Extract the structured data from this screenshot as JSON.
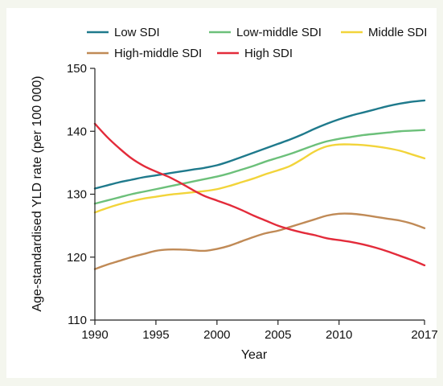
{
  "chart_data": {
    "type": "line",
    "xlabel": "Year",
    "ylabel": "Age-standardised YLD rate (per 100 000)",
    "xlim": [
      1990,
      2017
    ],
    "ylim": [
      110,
      150
    ],
    "xticks": [
      1990,
      1995,
      2000,
      2005,
      2010,
      2017
    ],
    "yticks": [
      110,
      120,
      130,
      140,
      150
    ],
    "grid": false,
    "legend": "top",
    "x": [
      1990,
      1991,
      1992,
      1993,
      1994,
      1995,
      1996,
      1997,
      1998,
      1999,
      2000,
      2001,
      2002,
      2003,
      2004,
      2005,
      2006,
      2007,
      2008,
      2009,
      2010,
      2011,
      2012,
      2013,
      2014,
      2015,
      2016,
      2017
    ],
    "series": [
      {
        "name": "Low SDI",
        "color": "#1f7a8c",
        "values": [
          130.9,
          131.4,
          131.9,
          132.3,
          132.7,
          133.0,
          133.3,
          133.6,
          133.9,
          134.2,
          134.6,
          135.2,
          135.9,
          136.6,
          137.3,
          138.0,
          138.7,
          139.5,
          140.4,
          141.2,
          141.9,
          142.5,
          143.0,
          143.5,
          144.0,
          144.4,
          144.7,
          144.9
        ]
      },
      {
        "name": "Low-middle SDI",
        "color": "#6cc07a",
        "values": [
          128.5,
          129.0,
          129.5,
          130.0,
          130.4,
          130.8,
          131.2,
          131.6,
          132.0,
          132.4,
          132.8,
          133.3,
          133.9,
          134.5,
          135.2,
          135.8,
          136.4,
          137.1,
          137.8,
          138.4,
          138.8,
          139.1,
          139.4,
          139.6,
          139.8,
          140.0,
          140.1,
          140.2
        ]
      },
      {
        "name": "Middle SDI",
        "color": "#f2d43a",
        "values": [
          127.1,
          127.8,
          128.4,
          128.9,
          129.3,
          129.6,
          129.9,
          130.1,
          130.3,
          130.5,
          130.8,
          131.3,
          131.9,
          132.5,
          133.2,
          133.8,
          134.5,
          135.6,
          136.8,
          137.6,
          137.9,
          137.9,
          137.8,
          137.6,
          137.3,
          136.9,
          136.3,
          135.7
        ]
      },
      {
        "name": "High-middle SDI",
        "color": "#c08a56",
        "values": [
          118.1,
          118.8,
          119.4,
          120.0,
          120.5,
          121.0,
          121.2,
          121.2,
          121.1,
          121.0,
          121.3,
          121.8,
          122.5,
          123.2,
          123.8,
          124.2,
          124.8,
          125.4,
          126.0,
          126.6,
          126.9,
          126.9,
          126.7,
          126.4,
          126.1,
          125.8,
          125.3,
          124.6
        ]
      },
      {
        "name": "High SDI",
        "color": "#e32b3a",
        "values": [
          141.2,
          139.1,
          137.3,
          135.7,
          134.5,
          133.6,
          132.8,
          131.8,
          130.7,
          129.7,
          129.0,
          128.3,
          127.5,
          126.6,
          125.8,
          125.0,
          124.4,
          123.9,
          123.5,
          123.0,
          122.7,
          122.4,
          122.0,
          121.5,
          120.9,
          120.2,
          119.5,
          118.7
        ]
      }
    ]
  }
}
